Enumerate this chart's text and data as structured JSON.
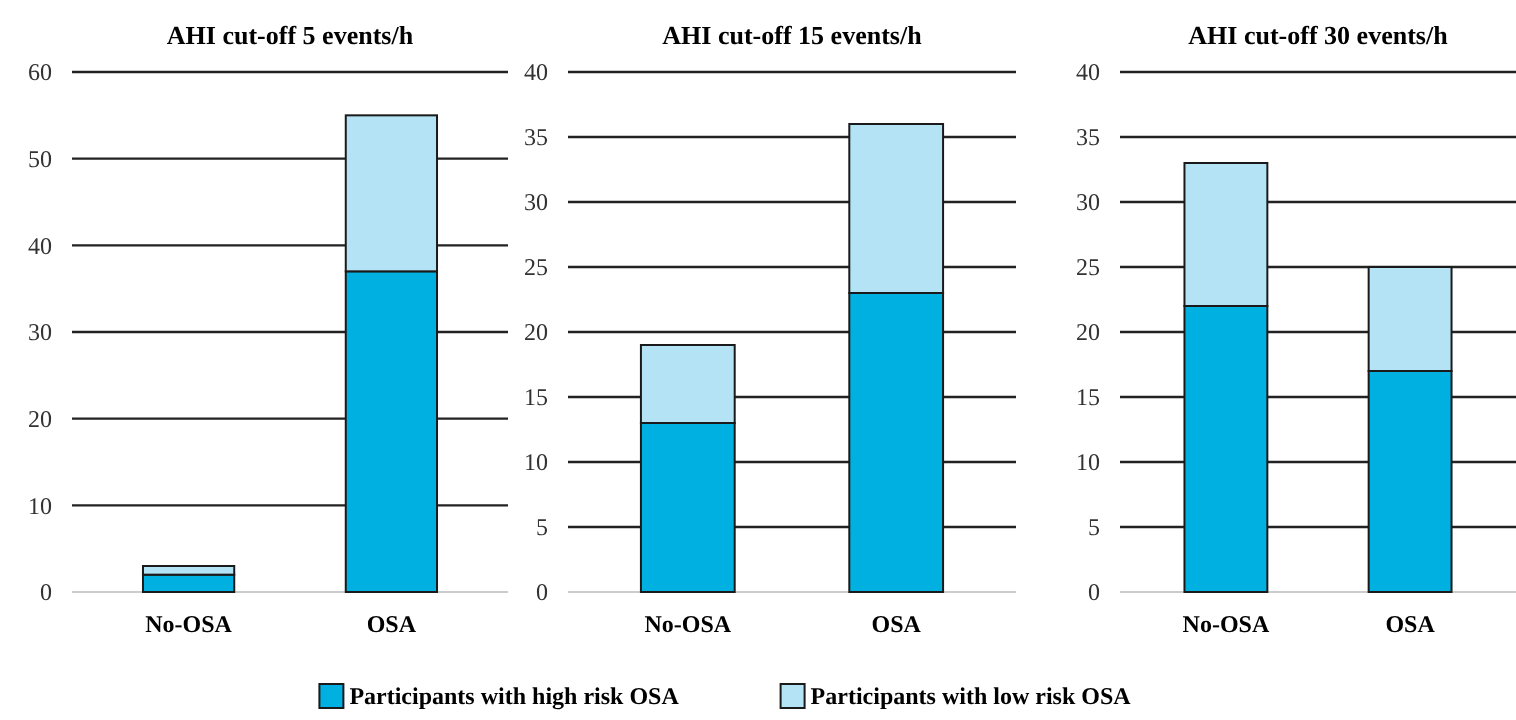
{
  "chart_data": [
    {
      "type": "bar",
      "title": "AHI cut-off 5 events/h",
      "categories": [
        "No-OSA",
        "OSA"
      ],
      "stacked": true,
      "ylim": [
        0,
        60
      ],
      "yticks": [
        0,
        10,
        20,
        30,
        40,
        50,
        60
      ],
      "grid": "y",
      "legend": "bottom",
      "series": [
        {
          "name": "Participants with high risk OSA",
          "color": "#00b0e0",
          "values": [
            2,
            37
          ]
        },
        {
          "name": "Participants with low risk OSA",
          "color": "#b4e3f5",
          "values": [
            1,
            18
          ]
        }
      ]
    },
    {
      "type": "bar",
      "title": "AHI cut-off 15 events/h",
      "categories": [
        "No-OSA",
        "OSA"
      ],
      "stacked": true,
      "ylim": [
        0,
        40
      ],
      "yticks": [
        0,
        5,
        10,
        15,
        20,
        25,
        30,
        35,
        40
      ],
      "grid": "y",
      "series": [
        {
          "color": "#00b0e0",
          "values": [
            13,
            23
          ]
        },
        {
          "color": "#b4e3f5",
          "values": [
            6,
            13
          ]
        }
      ]
    },
    {
      "type": "bar",
      "title": "AHI cut-off 30 events/h",
      "categories": [
        "No-OSA",
        "OSA"
      ],
      "stacked": true,
      "ylim": [
        0,
        40
      ],
      "yticks": [
        0,
        5,
        10,
        15,
        20,
        25,
        30,
        35,
        40
      ],
      "grid": "y",
      "series": [
        {
          "color": "#00b0e0",
          "values": [
            22,
            17
          ]
        },
        {
          "color": "#b4e3f5",
          "values": [
            11,
            8
          ]
        }
      ]
    }
  ]
}
